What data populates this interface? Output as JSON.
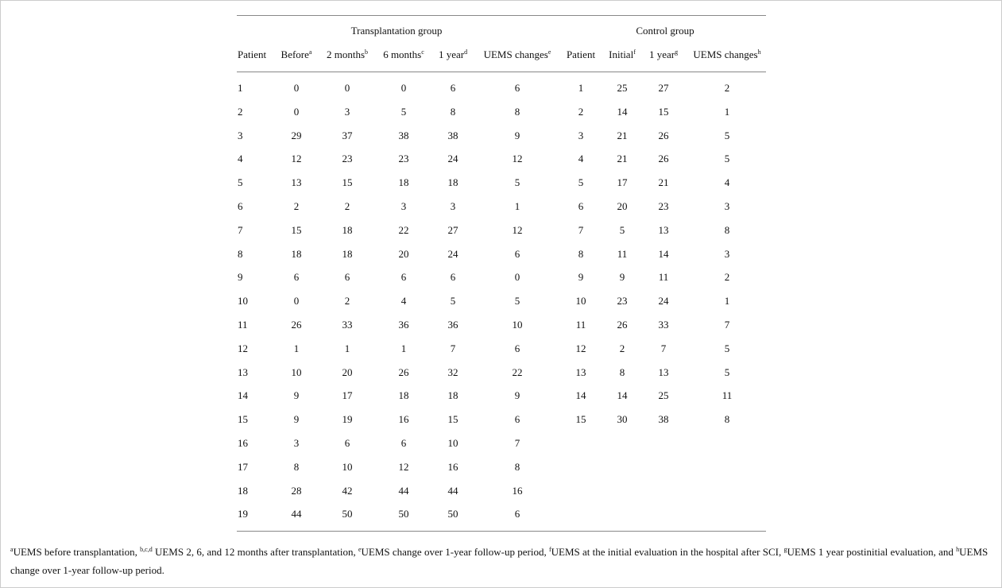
{
  "table": {
    "groups": [
      {
        "title": "Transplantation group",
        "headers": [
          {
            "label": "Patient"
          },
          {
            "label": "Before",
            "sup": "a"
          },
          {
            "label": "2 months",
            "sup": "b"
          },
          {
            "label": "6 months",
            "sup": "c"
          },
          {
            "label": "1 year",
            "sup": "d"
          },
          {
            "label": "UEMS changes",
            "sup": "e"
          }
        ],
        "rows": [
          [
            1,
            0,
            0,
            0,
            6,
            6
          ],
          [
            2,
            0,
            3,
            5,
            8,
            8
          ],
          [
            3,
            29,
            37,
            38,
            38,
            9
          ],
          [
            4,
            12,
            23,
            23,
            24,
            12
          ],
          [
            5,
            13,
            15,
            18,
            18,
            5
          ],
          [
            6,
            2,
            2,
            3,
            3,
            1
          ],
          [
            7,
            15,
            18,
            22,
            27,
            12
          ],
          [
            8,
            18,
            18,
            20,
            24,
            6
          ],
          [
            9,
            6,
            6,
            6,
            6,
            0
          ],
          [
            10,
            0,
            2,
            4,
            5,
            5
          ],
          [
            11,
            26,
            33,
            36,
            36,
            10
          ],
          [
            12,
            1,
            1,
            1,
            7,
            6
          ],
          [
            13,
            10,
            20,
            26,
            32,
            22
          ],
          [
            14,
            9,
            17,
            18,
            18,
            9
          ],
          [
            15,
            9,
            19,
            16,
            15,
            6
          ],
          [
            16,
            3,
            6,
            6,
            10,
            7
          ],
          [
            17,
            8,
            10,
            12,
            16,
            8
          ],
          [
            18,
            28,
            42,
            44,
            44,
            16
          ],
          [
            19,
            44,
            50,
            50,
            50,
            6
          ]
        ]
      },
      {
        "title": "Control group",
        "headers": [
          {
            "label": "Patient"
          },
          {
            "label": "Initial",
            "sup": "f"
          },
          {
            "label": "1 year",
            "sup": "g"
          },
          {
            "label": "UEMS changes",
            "sup": "h"
          }
        ],
        "rows": [
          [
            1,
            25,
            27,
            2
          ],
          [
            2,
            14,
            15,
            1
          ],
          [
            3,
            21,
            26,
            5
          ],
          [
            4,
            21,
            26,
            5
          ],
          [
            5,
            17,
            21,
            4
          ],
          [
            6,
            20,
            23,
            3
          ],
          [
            7,
            5,
            13,
            8
          ],
          [
            8,
            11,
            14,
            3
          ],
          [
            9,
            9,
            11,
            2
          ],
          [
            10,
            23,
            24,
            1
          ],
          [
            11,
            26,
            33,
            7
          ],
          [
            12,
            2,
            7,
            5
          ],
          [
            13,
            8,
            13,
            5
          ],
          [
            14,
            14,
            25,
            11
          ],
          [
            15,
            30,
            38,
            8
          ]
        ]
      }
    ]
  },
  "footnote": [
    {
      "sup": "a",
      "text": "UEMS before transplantation, "
    },
    {
      "sup": "b,c,d",
      "text": " UEMS 2, 6, and 12 months after transplantation, "
    },
    {
      "sup": "e",
      "text": "UEMS change over 1-year follow-up period, "
    },
    {
      "sup": "f",
      "text": "UEMS at the initial evaluation in the hospital after SCI, "
    },
    {
      "sup": "g",
      "text": "UEMS 1 year postinitial evaluation, and "
    },
    {
      "sup": "h",
      "text": "UEMS change over 1-year follow-up period."
    }
  ]
}
